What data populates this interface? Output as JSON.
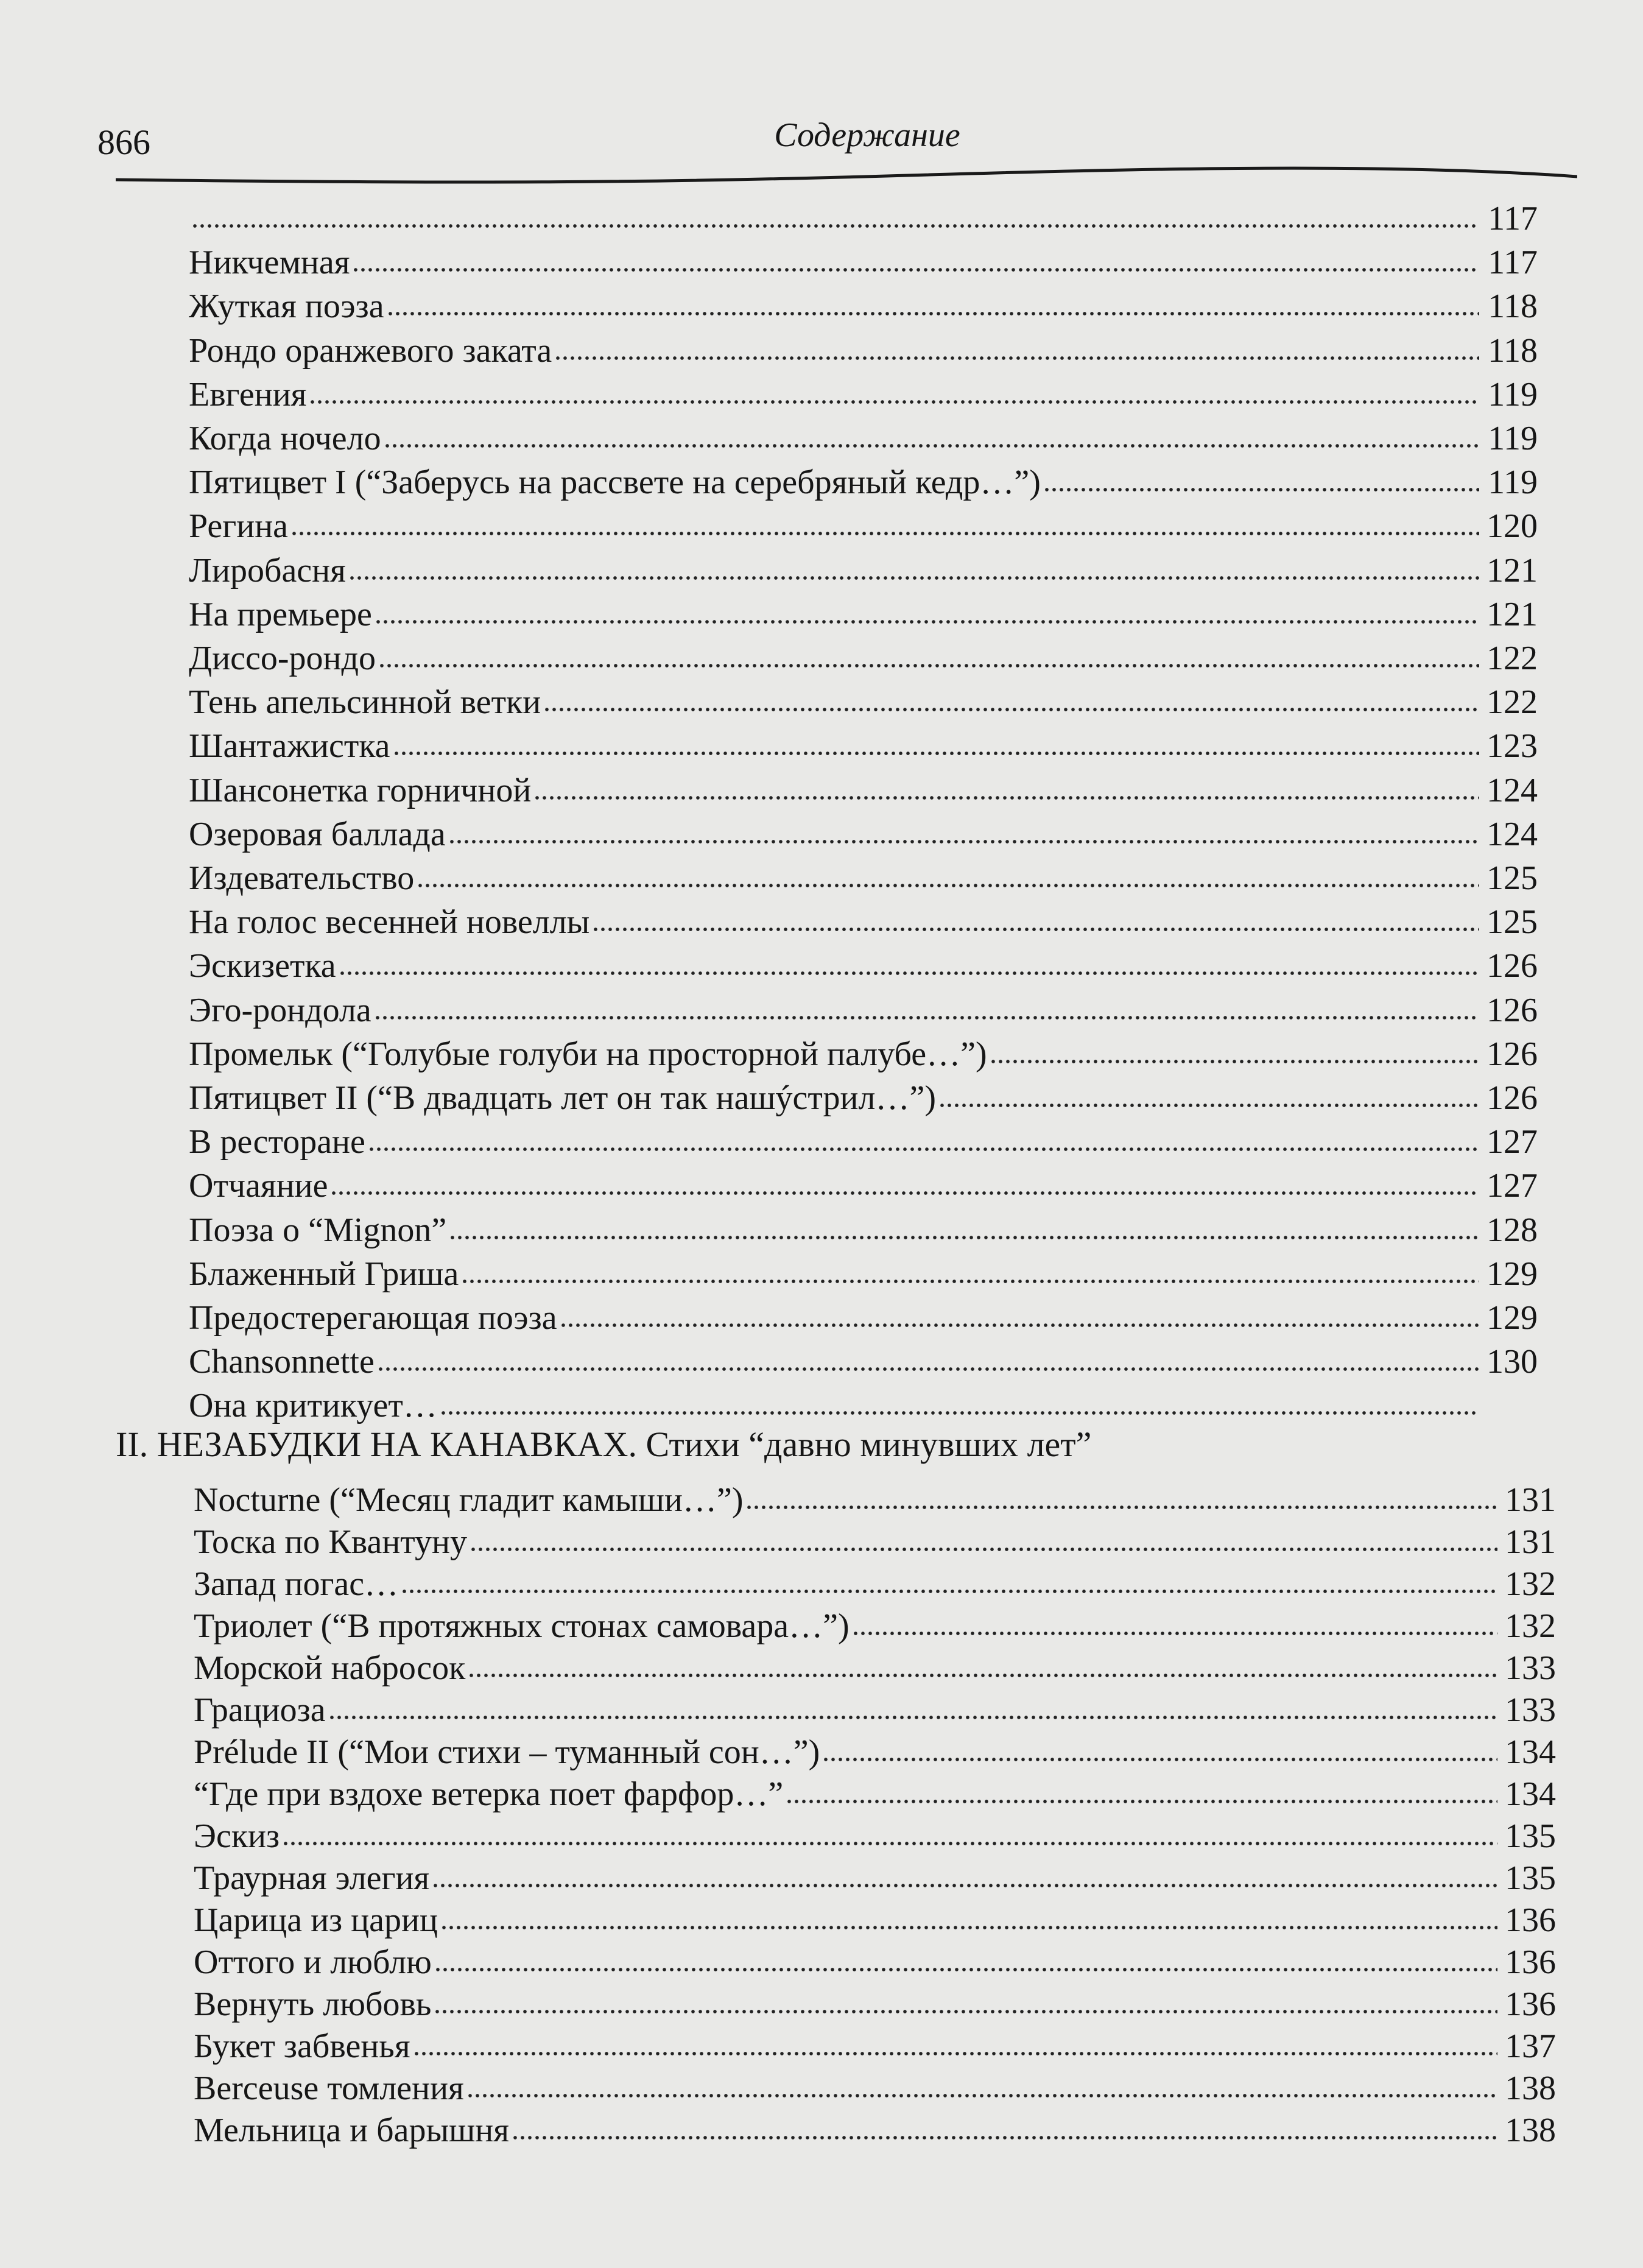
{
  "header": {
    "page_number": "866",
    "running_title": "Содержание"
  },
  "group1": [
    {
      "title": "",
      "page": "117"
    },
    {
      "title": "Никчемная",
      "page": "117"
    },
    {
      "title": "Жуткая поэза",
      "page": "118"
    },
    {
      "title": "Рондо оранжевого заката",
      "page": "118"
    },
    {
      "title": "Евгения",
      "page": "119"
    },
    {
      "title": "Когда ночело",
      "page": "119"
    },
    {
      "title": "Пятицвет I (“Заберусь на рассвете на серебряный кедр…”)",
      "page": "119"
    },
    {
      "title": "Регина",
      "page": "120"
    },
    {
      "title": "Лиробасня",
      "page": "121"
    },
    {
      "title": "На премьере",
      "page": "121"
    },
    {
      "title": "Диссо-рондо",
      "page": "122"
    },
    {
      "title": "Тень апельсинной ветки",
      "page": "122"
    },
    {
      "title": "Шантажистка",
      "page": "123"
    },
    {
      "title": "Шансонетка горничной",
      "page": "124"
    },
    {
      "title": "Озеровая баллада",
      "page": "124"
    },
    {
      "title": "Издевательство",
      "page": "125"
    },
    {
      "title": "На голос весенней новеллы",
      "page": "125"
    },
    {
      "title": "Эскизетка",
      "page": "126"
    },
    {
      "title": "Эго-рондола",
      "page": "126"
    },
    {
      "title": "Промельк (“Голубые голуби на просторной палубе…”)",
      "page": "126"
    },
    {
      "title": "Пятицвет II (“В двадцать лет он так нашýстрил…”)",
      "page": "126"
    },
    {
      "title": "В ресторане",
      "page": "127"
    },
    {
      "title": "Отчаяние",
      "page": "127"
    },
    {
      "title": "Поэза о “Mignon”",
      "page": "128"
    },
    {
      "title": "Блаженный Гриша",
      "page": "129"
    },
    {
      "title": "Предостерегающая поэза",
      "page": "129"
    },
    {
      "title": "Chansonnette",
      "page": "130"
    },
    {
      "title": "Она критикует…",
      "page": ""
    }
  ],
  "section_heading": "II. НЕЗАБУДКИ НА КАНАВКАХ. Стихи “давно минувших лет”",
  "group2": [
    {
      "title": "Nocturne (“Месяц гладит камыши…”)",
      "page": "131"
    },
    {
      "title": "Тоска по Квантуну",
      "page": "131"
    },
    {
      "title": "Запад погас…",
      "page": "132"
    },
    {
      "title": "Триолет (“В протяжных стонах самовара…”)",
      "page": "132"
    },
    {
      "title": "Морской набросок",
      "page": "133"
    },
    {
      "title": "Грациоза",
      "page": "133"
    },
    {
      "title": "Prélude II (“Мои стихи – туманный сон…”)",
      "page": "134"
    },
    {
      "title": "“Где при вздохе ветерка поет фарфор…”",
      "page": "134"
    },
    {
      "title": "Эскиз",
      "page": "135"
    },
    {
      "title": "Траурная элегия",
      "page": "135"
    },
    {
      "title": "Царица из цариц",
      "page": "136"
    },
    {
      "title": "Оттого и люблю",
      "page": "136"
    },
    {
      "title": "Вернуть любовь",
      "page": "136"
    },
    {
      "title": "Букет забвенья",
      "page": "137"
    },
    {
      "title": "Berceuse томления",
      "page": "138"
    },
    {
      "title": "Мельница и барышня",
      "page": "138"
    }
  ]
}
